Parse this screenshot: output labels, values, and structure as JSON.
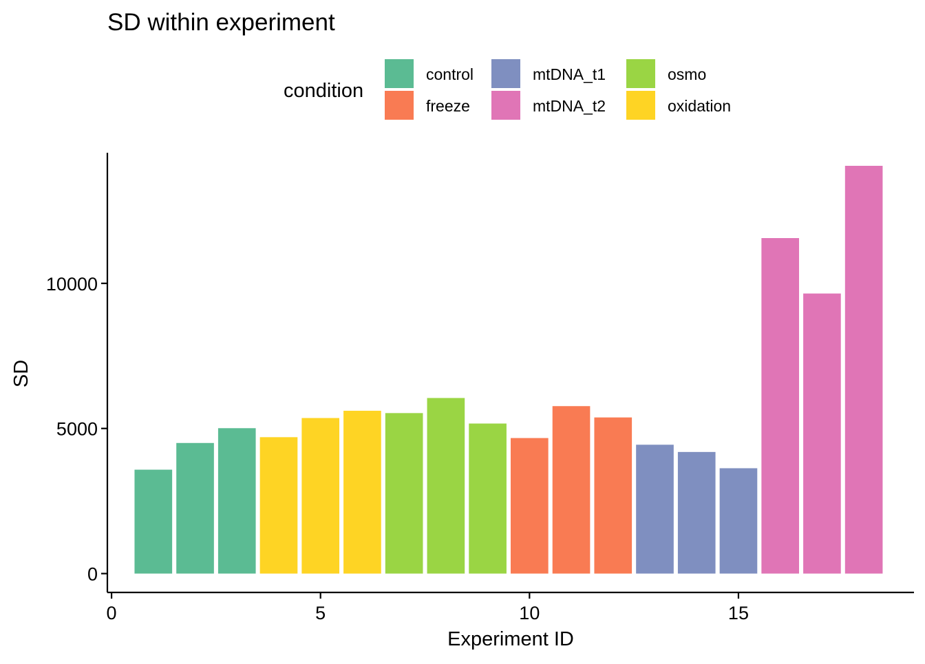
{
  "chart_data": {
    "type": "bar",
    "title": "SD within experiment",
    "xlabel": "Experiment ID",
    "ylabel": "SD",
    "xlim": [
      -0.1,
      19.2
    ],
    "ylim": [
      -650,
      14500
    ],
    "x_ticks": [
      0,
      5,
      10,
      15
    ],
    "y_ticks": [
      0,
      5000,
      10000
    ],
    "bar_width": 0.9,
    "grid": false,
    "legend_position": "top",
    "legend": {
      "title": "condition",
      "entries": [
        {
          "label": "control",
          "color": "#5bbb93"
        },
        {
          "label": "freeze",
          "color": "#f97b53"
        },
        {
          "label": "mtDNA_t1",
          "color": "#7f8fc0"
        },
        {
          "label": "mtDNA_t2",
          "color": "#e075b6"
        },
        {
          "label": "osmo",
          "color": "#9ad544"
        },
        {
          "label": "oxidation",
          "color": "#fed424"
        }
      ]
    },
    "bars": [
      {
        "x": 1,
        "value": 3580,
        "condition": "control"
      },
      {
        "x": 2,
        "value": 4500,
        "condition": "control"
      },
      {
        "x": 3,
        "value": 5010,
        "condition": "control"
      },
      {
        "x": 4,
        "value": 4700,
        "condition": "oxidation"
      },
      {
        "x": 5,
        "value": 5360,
        "condition": "oxidation"
      },
      {
        "x": 6,
        "value": 5610,
        "condition": "oxidation"
      },
      {
        "x": 7,
        "value": 5530,
        "condition": "osmo"
      },
      {
        "x": 8,
        "value": 6050,
        "condition": "osmo"
      },
      {
        "x": 9,
        "value": 5170,
        "condition": "osmo"
      },
      {
        "x": 10,
        "value": 4670,
        "condition": "freeze"
      },
      {
        "x": 11,
        "value": 5770,
        "condition": "freeze"
      },
      {
        "x": 12,
        "value": 5380,
        "condition": "freeze"
      },
      {
        "x": 13,
        "value": 4440,
        "condition": "mtDNA_t1"
      },
      {
        "x": 14,
        "value": 4190,
        "condition": "mtDNA_t1"
      },
      {
        "x": 15,
        "value": 3630,
        "condition": "mtDNA_t1"
      },
      {
        "x": 16,
        "value": 11560,
        "condition": "mtDNA_t2"
      },
      {
        "x": 17,
        "value": 9650,
        "condition": "mtDNA_t2"
      },
      {
        "x": 18,
        "value": 14050,
        "condition": "mtDNA_t2"
      }
    ]
  }
}
